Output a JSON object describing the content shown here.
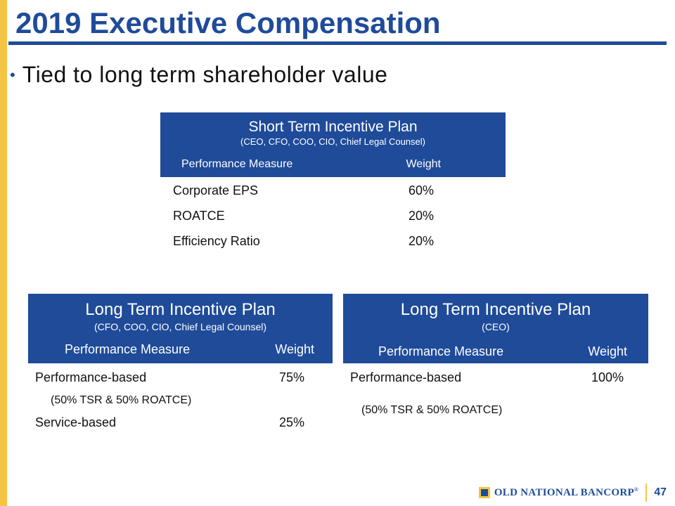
{
  "header": {
    "title": "2019 Executive Compensation",
    "bullet": "Tied to long term shareholder value"
  },
  "short_term": {
    "title": "Short Term Incentive Plan",
    "subtitle": "(CEO, CFO, COO, CIO, Chief Legal Counsel)",
    "col_measure": "Performance Measure",
    "col_weight": "Weight",
    "rows": [
      {
        "measure": "Corporate EPS",
        "weight": "60%"
      },
      {
        "measure": "ROATCE",
        "weight": "20%"
      },
      {
        "measure": "Efficiency Ratio",
        "weight": "20%"
      }
    ]
  },
  "long_term_a": {
    "title": "Long Term Incentive Plan",
    "subtitle": "(CFO, COO, CIO, Chief Legal Counsel)",
    "col_measure": "Performance Measure",
    "col_weight": "Weight",
    "rows": [
      {
        "measure": "Performance-based",
        "weight": "75%"
      },
      {
        "measure": "Service-based",
        "weight": "25%"
      }
    ],
    "note": "(50% TSR & 50% ROATCE)"
  },
  "long_term_b": {
    "title": "Long Term Incentive Plan",
    "subtitle": "(CEO)",
    "col_measure": "Performance Measure",
    "col_weight": "Weight",
    "rows": [
      {
        "measure": "Performance-based",
        "weight": "100%"
      }
    ],
    "note": "(50% TSR & 50% ROATCE)"
  },
  "footer": {
    "company": "OLD NATIONAL BANCORP",
    "registered": "®",
    "page_number": "47"
  },
  "colors": {
    "brand_blue": "#1f4b99",
    "accent_gold": "#f4c542"
  }
}
